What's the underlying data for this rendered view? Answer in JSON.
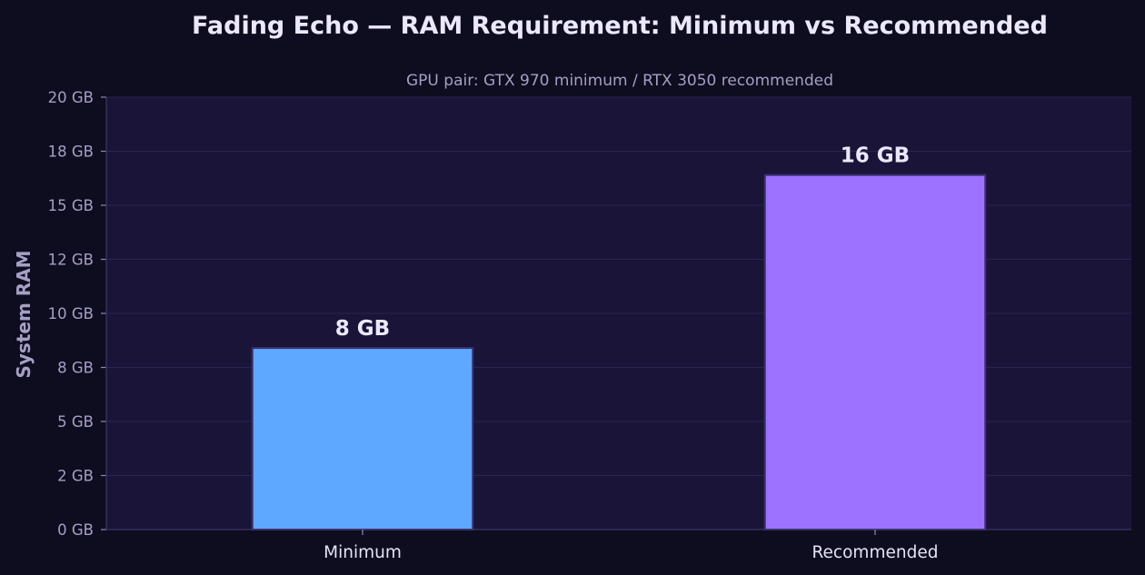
{
  "chart_data": {
    "type": "bar",
    "title": "Fading Echo — RAM Requirement: Minimum vs Recommended",
    "subtitle": "GPU pair: GTX 970 minimum / RTX 3050 recommended",
    "xlabel": "",
    "ylabel": "System RAM",
    "categories": [
      "Minimum",
      "Recommended"
    ],
    "values": [
      8,
      16
    ],
    "value_labels": [
      "8 GB",
      "16 GB"
    ],
    "ylim": [
      0,
      20
    ],
    "yticks": [
      0,
      2.5,
      5,
      7.5,
      10,
      12.5,
      15,
      17.5,
      20
    ],
    "ytick_labels": [
      "0 GB",
      "2 GB",
      "5 GB",
      "8 GB",
      "10 GB",
      "12 GB",
      "15 GB",
      "18 GB",
      "20 GB"
    ],
    "grid": true,
    "legend": "none",
    "colors": {
      "background": "#0e0c1f",
      "plot_background": "#1a1538",
      "bars": [
        "#5ea8ff",
        "#9d72ff"
      ],
      "bar_edge": "#3a2f6e",
      "grid": "#2a2450",
      "axis": "#3b3466"
    }
  }
}
